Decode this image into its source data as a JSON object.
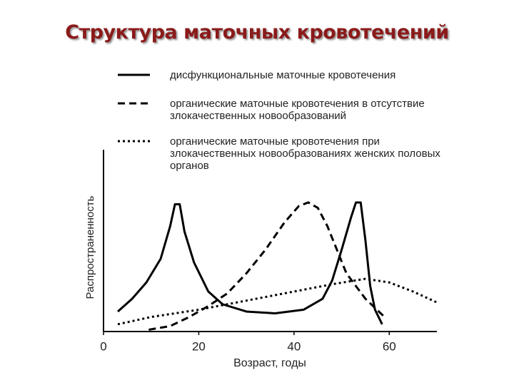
{
  "chart_data": {
    "type": "line",
    "title": "Структура маточных кровотечений",
    "xlabel": "Возраст, годы",
    "ylabel": "Распространенность",
    "xlim": [
      0,
      70
    ],
    "xticks": [
      0,
      20,
      40,
      60
    ],
    "ylim": [
      0,
      100
    ],
    "series": [
      {
        "name": "дисфункциональные маточные кровотечения",
        "color": "#000000",
        "dash": "solid",
        "x": [
          3,
          6,
          9,
          12,
          14,
          15,
          16,
          17,
          19,
          22,
          25,
          30,
          36,
          42,
          46,
          48,
          50,
          52,
          53,
          54,
          55,
          56,
          57,
          58.5
        ],
        "values": [
          11,
          18,
          27,
          40,
          58,
          70,
          70,
          55,
          38,
          22,
          15,
          11,
          10,
          12,
          18,
          28,
          45,
          63,
          71,
          71,
          50,
          25,
          12,
          4
        ]
      },
      {
        "name": "органические маточные кровотечения в отсутствие злокачественных новообразований",
        "color": "#000000",
        "dash": "dashed",
        "x": [
          9.5,
          14,
          18,
          22,
          26,
          30,
          34,
          38,
          41,
          43,
          45,
          47,
          49,
          51,
          53,
          55,
          57,
          59
        ],
        "values": [
          1,
          3,
          8,
          14,
          21,
          32,
          45,
          60,
          69,
          71,
          68,
          58,
          45,
          32,
          25,
          18,
          13,
          8
        ]
      },
      {
        "name": "органические маточные кровотечения при злокачественных новообразованиях женских половых органов",
        "color": "#000000",
        "dash": "dotted",
        "x": [
          3,
          10,
          20,
          30,
          40,
          48,
          55,
          60,
          65,
          70
        ],
        "values": [
          4,
          8,
          12,
          17,
          22,
          26,
          29,
          27,
          22,
          16
        ]
      }
    ]
  }
}
